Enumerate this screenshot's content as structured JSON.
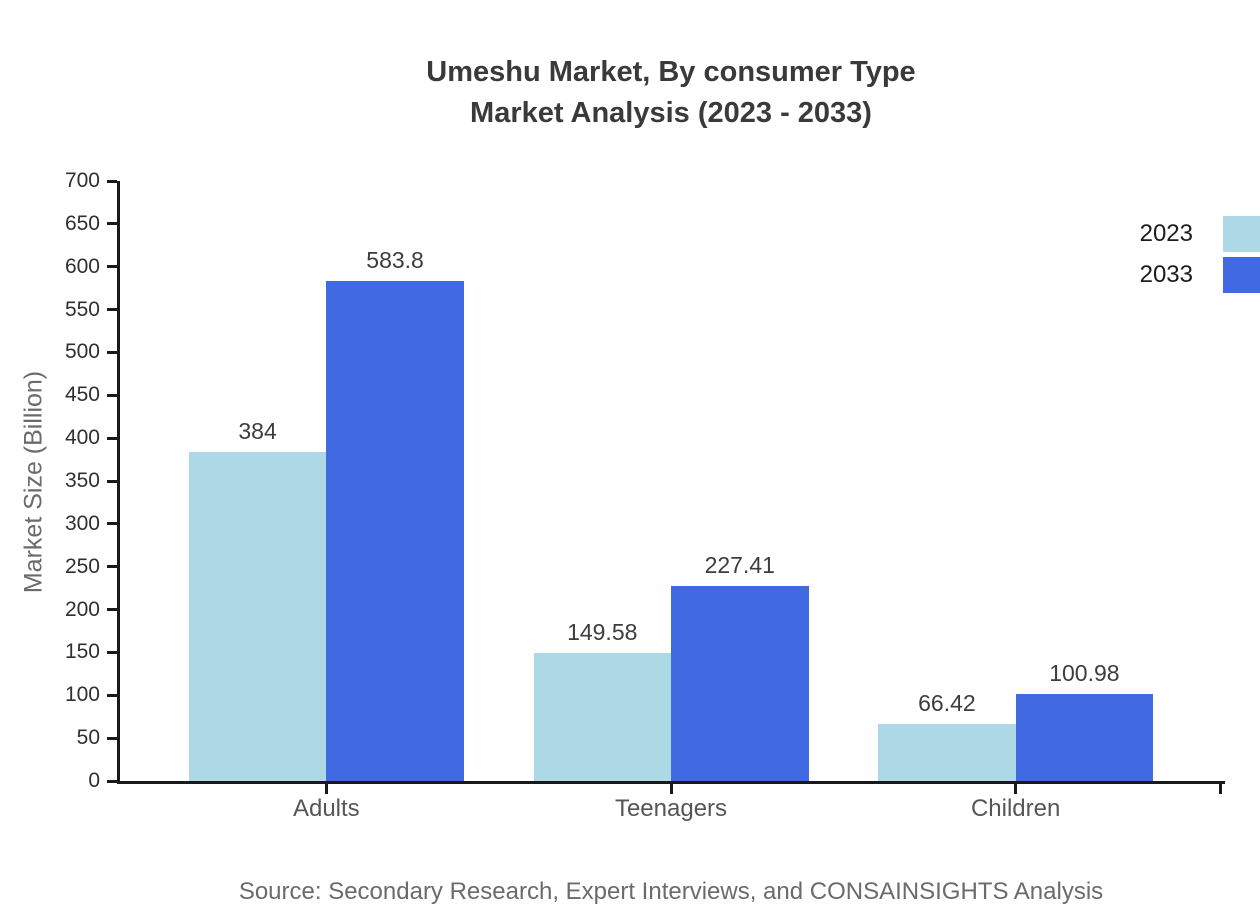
{
  "title": {
    "line1": "Umeshu Market, By consumer Type",
    "line2": "Market Analysis (2023 - 2033)"
  },
  "legend": {
    "items": [
      {
        "label": "2023",
        "color": "#ADD8E6"
      },
      {
        "label": "2033",
        "color": "#4169E1"
      }
    ]
  },
  "source_note": "Source: Secondary Research, Expert Interviews, and CONSAINSIGHTS Analysis",
  "colors": {
    "series_2023": "#ADD8E6",
    "series_2033": "#4169E1",
    "axis": "#1a1a1a",
    "title_text": "#3a3a3a",
    "muted_text": "#6b6b6b"
  },
  "chart_data": {
    "type": "bar",
    "title": "Umeshu Market, By consumer Type Market Analysis (2023 - 2033)",
    "categories": [
      "Adults",
      "Teenagers",
      "Children"
    ],
    "series": [
      {
        "name": "2023",
        "color": "#ADD8E6",
        "values": [
          384,
          149.58,
          66.42
        ]
      },
      {
        "name": "2033",
        "color": "#4169E1",
        "values": [
          583.8,
          227.41,
          100.98
        ]
      }
    ],
    "xlabel": "",
    "ylabel": "Market Size (Billion)",
    "ylim": [
      0,
      700
    ],
    "ytick_step": 50,
    "grid": false,
    "legend_position": "top-right",
    "value_labels_shown": true
  }
}
